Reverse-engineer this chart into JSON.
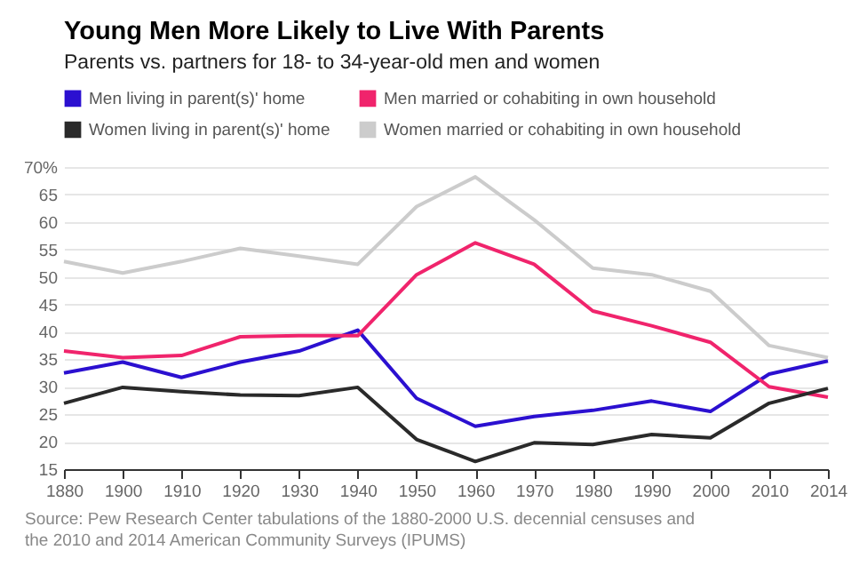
{
  "chart_data": {
    "type": "line",
    "title": "Young Men More Likely to Live With Parents",
    "subtitle": "Parents vs. partners for 18- to 34-year-old men and women",
    "categories": [
      "1880",
      "1900",
      "1910",
      "1920",
      "1930",
      "1940",
      "1950",
      "1960",
      "1970",
      "1980",
      "1990",
      "2000",
      "2010",
      "2014"
    ],
    "series": [
      {
        "name": "Men living in parent(s)' home",
        "color": "#2b10d0",
        "values": [
          32.5,
          34.5,
          31.7,
          34.5,
          36.5,
          40.3,
          27.9,
          22.8,
          24.6,
          25.7,
          27.4,
          25.5,
          32.3,
          34.7
        ]
      },
      {
        "name": "Men married or cohabiting in own household",
        "color": "#f0246c",
        "values": [
          36.5,
          35.3,
          35.7,
          39.1,
          39.3,
          39.3,
          50.4,
          56.2,
          52.3,
          43.8,
          41.1,
          38.1,
          30.0,
          28.1
        ]
      },
      {
        "name": "Women living in parent(s)' home",
        "color": "#2a2a2a",
        "values": [
          27.0,
          29.9,
          29.1,
          28.5,
          28.4,
          29.9,
          20.4,
          16.4,
          19.8,
          19.5,
          21.3,
          20.7,
          27.0,
          29.7
        ]
      },
      {
        "name": "Women married or cohabiting in own household",
        "color": "#cccccc",
        "values": [
          52.8,
          50.7,
          52.8,
          55.2,
          53.8,
          52.3,
          62.8,
          68.2,
          60.4,
          51.6,
          50.4,
          47.4,
          37.5,
          35.3
        ]
      }
    ],
    "ylim": [
      15,
      70
    ],
    "yticks": [
      15,
      20,
      25,
      30,
      35,
      40,
      45,
      50,
      55,
      60,
      65,
      {
        "value": 70,
        "label": "70%"
      }
    ],
    "grid": "y",
    "legend": "top",
    "annotations": [
      "Source: Pew Research Center tabulations of the 1880-2000 U.S. decennial censuses and the 2010 and 2014 American Community Surveys (IPUMS)"
    ]
  }
}
